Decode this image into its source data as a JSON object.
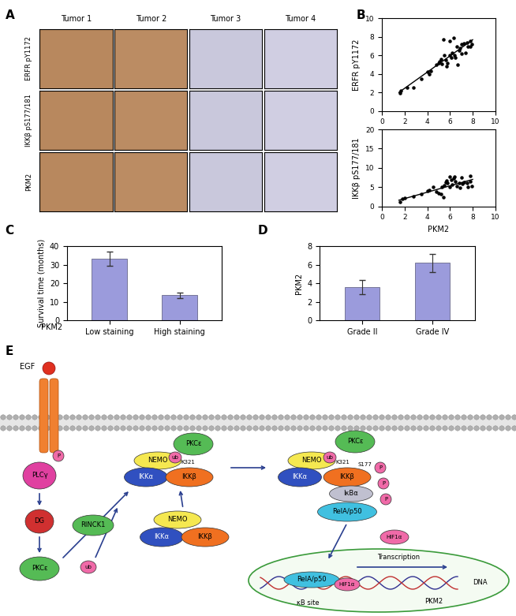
{
  "panel_labels": [
    "A",
    "B",
    "C",
    "D",
    "E"
  ],
  "images": {
    "columns": [
      "Tumor 1",
      "Tumor 2",
      "Tumor 3",
      "Tumor 4"
    ],
    "rows": [
      "ERFR pY1172",
      "IKKβ pS177/181",
      "PKM2"
    ],
    "colors": [
      "#b8885e",
      "#bb8c63",
      "#c9c8dc",
      "#d0cee2"
    ]
  },
  "chart_data": [
    {
      "type": "scatter",
      "y_label": "ERFR pY1172",
      "color": "#000000",
      "x": [
        1.6,
        1.7,
        2.2,
        2.8,
        3.5,
        4.0,
        4.2,
        4.3,
        4.8,
        5.0,
        5.1,
        5.2,
        5.3,
        5.4,
        5.5,
        5.6,
        5.7,
        5.8,
        6.0,
        6.0,
        6.1,
        6.2,
        6.3,
        6.4,
        6.5,
        6.6,
        6.7,
        6.8,
        6.9,
        7.0,
        7.0,
        7.2,
        7.4,
        7.5,
        7.6,
        7.8,
        7.8,
        7.9
      ],
      "values": [
        1.9,
        2.2,
        2.5,
        2.5,
        3.5,
        4.2,
        4.0,
        4.3,
        5.0,
        5.2,
        5.3,
        5.6,
        5.1,
        7.7,
        6.0,
        5.5,
        4.8,
        5.2,
        7.6,
        6.0,
        5.8,
        6.3,
        7.9,
        6.0,
        5.8,
        7.0,
        5.0,
        6.5,
        6.8,
        6.2,
        7.2,
        7.3,
        6.3,
        7.4,
        7.0,
        7.0,
        7.6,
        7.2
      ],
      "fit": {
        "x": [
          1.5,
          8.0
        ],
        "values": [
          2.0,
          7.7
        ]
      },
      "xlim": [
        0,
        10
      ],
      "xticks": [
        0,
        2,
        4,
        6,
        8,
        10
      ],
      "ylim": [
        0,
        10
      ],
      "yticks": [
        0,
        2,
        4,
        6,
        8,
        10
      ]
    },
    {
      "type": "scatter",
      "x_label": "PKM2",
      "y_label": "IKKβ pS177/181",
      "color": "#000000",
      "x": [
        1.6,
        1.8,
        2.0,
        2.8,
        3.5,
        4.0,
        4.2,
        4.5,
        4.8,
        5.0,
        5.2,
        5.3,
        5.4,
        5.5,
        5.6,
        5.7,
        5.8,
        6.0,
        6.0,
        6.1,
        6.2,
        6.3,
        6.4,
        6.5,
        6.6,
        6.8,
        6.9,
        7.0,
        7.1,
        7.2,
        7.5,
        7.6,
        7.8,
        7.8,
        7.9
      ],
      "values": [
        1.2,
        2.0,
        2.2,
        2.6,
        3.2,
        4.0,
        4.2,
        5.0,
        3.9,
        3.5,
        3.2,
        5.1,
        2.3,
        5.5,
        6.2,
        6.7,
        6.0,
        7.8,
        5.0,
        6.8,
        5.7,
        7.3,
        7.7,
        6.5,
        5.2,
        6.0,
        4.9,
        7.5,
        5.8,
        6.2,
        6.0,
        5.0,
        7.9,
        6.4,
        5.2
      ],
      "fit": {
        "x": [
          1.5,
          8.0
        ],
        "values": [
          1.6,
          7.0
        ]
      },
      "xlim": [
        0,
        10
      ],
      "xticks": [
        0,
        2,
        4,
        6,
        8,
        10
      ],
      "ylim": [
        0,
        20
      ],
      "yticks": [
        0,
        5,
        10,
        15,
        20
      ]
    },
    {
      "type": "bar",
      "x_label": "PKM2",
      "y_label": "Survival time (months)",
      "color": "#9b9bdc",
      "categories": [
        "Low staining",
        "High staining"
      ],
      "values": [
        33.5,
        13.5
      ],
      "errors": [
        3.8,
        1.5
      ],
      "ylim": [
        0,
        40
      ],
      "yticks": [
        0,
        10,
        20,
        30,
        40
      ]
    },
    {
      "type": "bar",
      "y_label": "PKM2",
      "color": "#9b9bdc",
      "categories": [
        "Grade II",
        "Grade IV"
      ],
      "values": [
        3.6,
        6.2
      ],
      "errors": [
        0.8,
        1.0
      ],
      "ylim": [
        0,
        8
      ],
      "yticks": [
        0,
        2,
        4,
        6,
        8
      ]
    }
  ],
  "diagram": {
    "nodes": [
      "EGF",
      "P",
      "PLCγ",
      "DG",
      "PKCε",
      "RINCK1",
      "ub",
      "NEMO",
      "IKKα",
      "IKKβ",
      "PKCε",
      "ub",
      "K321",
      "NEMO",
      "IKKα",
      "IKKβ",
      "NEMO",
      "IKKα",
      "IKKβ",
      "PKCε",
      "ub",
      "K321",
      "S177",
      "P",
      "P",
      "P",
      "IκBα",
      "RelA/p50",
      "HIF1α",
      "Transcription",
      "RelA/p50",
      "HIF1α",
      "κB site",
      "DNA",
      "PKM2"
    ]
  }
}
